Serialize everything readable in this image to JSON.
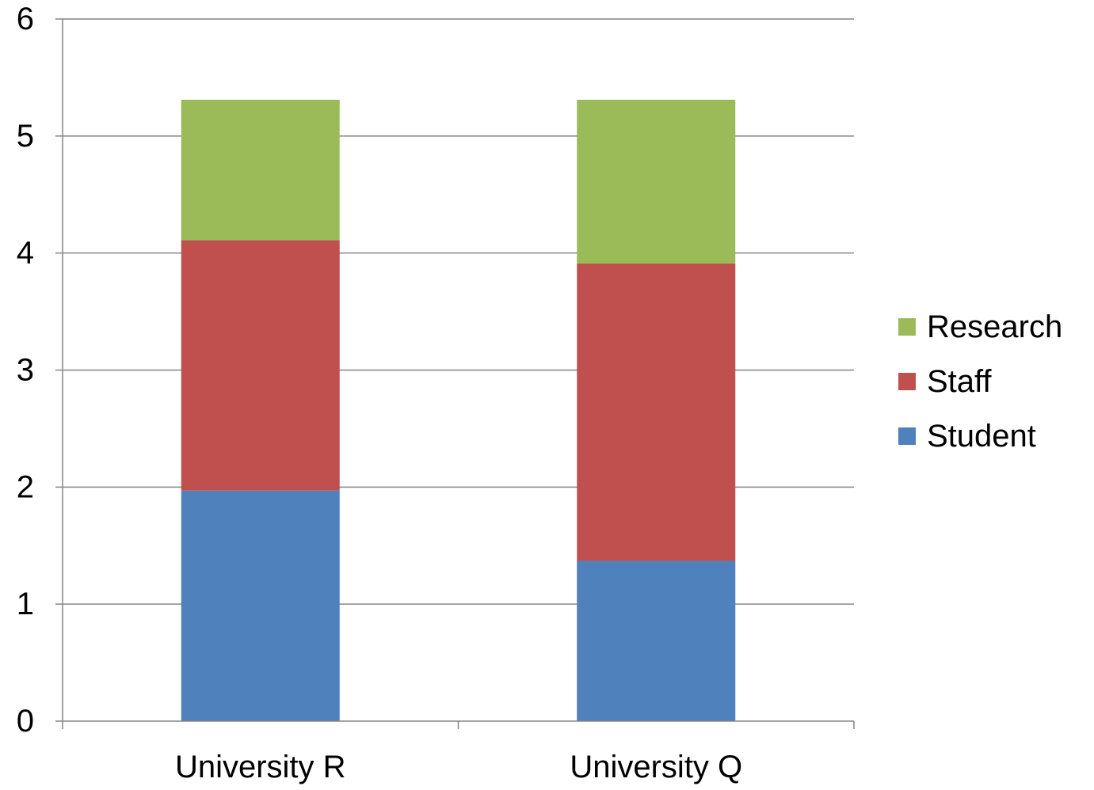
{
  "chart_data": {
    "type": "bar",
    "stacked": true,
    "categories": [
      "University R",
      "University Q"
    ],
    "series": [
      {
        "name": "Student",
        "color": "#4F81BD",
        "values": [
          1.97,
          1.37
        ]
      },
      {
        "name": "Staff",
        "color": "#C0504D",
        "values": [
          2.14,
          2.54
        ]
      },
      {
        "name": "Research",
        "color": "#9BBB59",
        "values": [
          1.2,
          1.4
        ]
      }
    ],
    "ylim": [
      0,
      6
    ],
    "yticks": [
      "0",
      "1",
      "2",
      "3",
      "4",
      "5",
      "6"
    ],
    "grid": true,
    "legend_position": "right",
    "legend_order": [
      "Research",
      "Staff",
      "Student"
    ],
    "title": "",
    "xlabel": "",
    "ylabel": ""
  }
}
